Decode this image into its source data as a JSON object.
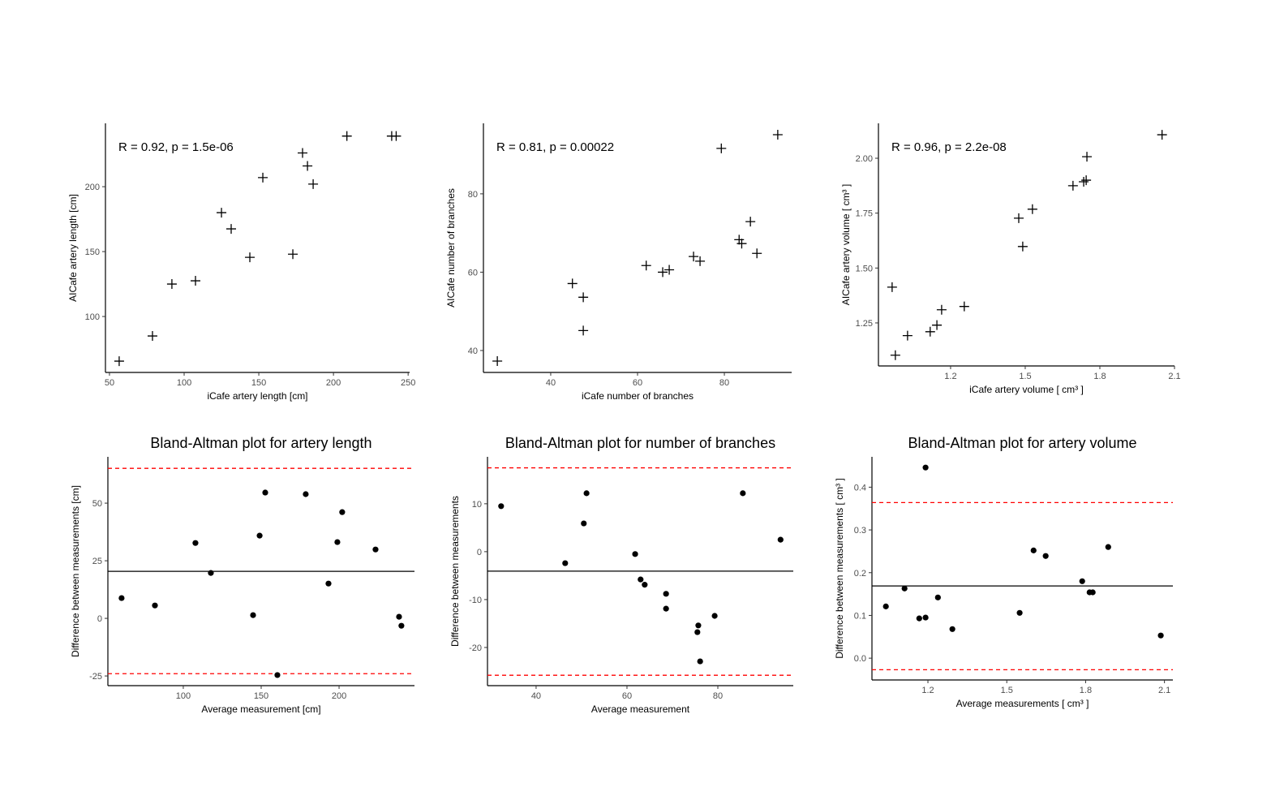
{
  "chart_data": [
    {
      "type": "scatter",
      "marker": "plus",
      "title": "",
      "annotation": "R = 0.92, p = 1.5e-06",
      "xlabel": "iCafe artery length [cm]",
      "ylabel": "AICafe artery length [cm]",
      "xlim": [
        47.3,
        251
      ],
      "ylim": [
        56.9,
        248.8
      ],
      "xticks": [
        50,
        100,
        150,
        200,
        250
      ],
      "yticks": [
        100,
        150,
        200
      ],
      "points": [
        [
          56.5,
          65.6
        ],
        [
          78.8,
          85
        ],
        [
          91.8,
          125
        ],
        [
          107.6,
          127.5
        ],
        [
          125,
          180
        ],
        [
          131.5,
          167.5
        ],
        [
          144,
          145.6
        ],
        [
          152.7,
          207
        ],
        [
          172.8,
          148
        ],
        [
          179.3,
          226
        ],
        [
          182.6,
          216
        ],
        [
          186.4,
          202
        ],
        [
          209,
          239
        ],
        [
          239,
          239
        ],
        [
          242,
          239
        ]
      ]
    },
    {
      "type": "scatter",
      "marker": "plus",
      "title": "",
      "annotation": "R = 0.81, p = 0.00022",
      "xlabel": "iCafe number of branches",
      "ylabel": "AICafe number of branches",
      "xlim": [
        24.5,
        95.5
      ],
      "ylim": [
        34.4,
        98.0
      ],
      "xticks": [
        40,
        60,
        80
      ],
      "yticks": [
        40,
        60,
        80
      ],
      "points": [
        [
          27.7,
          37.3
        ],
        [
          45,
          57.1
        ],
        [
          47.5,
          53.6
        ],
        [
          47.5,
          45.1
        ],
        [
          62,
          61.7
        ],
        [
          65.8,
          60
        ],
        [
          67.3,
          60.6
        ],
        [
          72.9,
          64
        ],
        [
          74.4,
          62.8
        ],
        [
          79.3,
          91.6
        ],
        [
          83.4,
          68.3
        ],
        [
          84,
          67.3
        ],
        [
          86,
          72.9
        ],
        [
          87.5,
          64.8
        ],
        [
          92.3,
          95.1
        ]
      ]
    },
    {
      "type": "scatter",
      "marker": "plus",
      "title": "",
      "annotation": "R = 0.96, p = 2.2e-08",
      "xlabel": "iCafe artery volume [ cm³ ]",
      "ylabel": "AICafe artery volume [ cm³ ]",
      "xlim": [
        0.91,
        2.1
      ],
      "ylim": [
        1.054,
        2.159
      ],
      "xticks": [
        1.2,
        1.5,
        1.8,
        2.1
      ],
      "yticks": [
        1.25,
        1.5,
        1.75,
        2.0
      ],
      "xtick_labels": [
        "1.2",
        "1.5",
        "1.8",
        "2.1"
      ],
      "ytick_labels": [
        "1.25",
        "1.50",
        "1.75",
        "2.00"
      ],
      "points": [
        [
          0.965,
          1.413
        ],
        [
          0.978,
          1.103
        ],
        [
          1.027,
          1.192
        ],
        [
          1.118,
          1.21
        ],
        [
          1.145,
          1.24
        ],
        [
          1.164,
          1.31
        ],
        [
          1.255,
          1.325
        ],
        [
          1.474,
          1.727
        ],
        [
          1.49,
          1.598
        ],
        [
          1.529,
          1.768
        ],
        [
          1.692,
          1.875
        ],
        [
          1.735,
          1.893
        ],
        [
          1.745,
          1.9
        ],
        [
          1.748,
          2.007
        ],
        [
          2.05,
          2.107
        ]
      ]
    },
    {
      "type": "scatter",
      "marker": "dot",
      "title": "Bland-Altman plot for artery length",
      "xlabel": "Average measurement [cm]",
      "ylabel": "Difference between measurements [cm]",
      "xlim": [
        51.6,
        248.4
      ],
      "ylim": [
        -29.2,
        70.1
      ],
      "xticks": [
        100,
        150,
        200
      ],
      "yticks": [
        -25,
        0,
        25,
        50
      ],
      "mean_line": 20.4,
      "limits": [
        65.1,
        -24.0
      ],
      "points": [
        [
          60.4,
          8.8
        ],
        [
          81.8,
          5.6
        ],
        [
          107.8,
          32.7
        ],
        [
          117.7,
          19.7
        ],
        [
          144.8,
          1.4
        ],
        [
          149,
          35.9
        ],
        [
          152.6,
          54.6
        ],
        [
          160.4,
          -24.6
        ],
        [
          178.6,
          53.9
        ],
        [
          193.2,
          15.1
        ],
        [
          198.9,
          33.1
        ],
        [
          202,
          46.1
        ],
        [
          223.4,
          29.9
        ],
        [
          238.5,
          0.7
        ],
        [
          240,
          -3.2
        ]
      ]
    },
    {
      "type": "scatter",
      "marker": "dot",
      "title": "Bland-Altman plot for number of branches",
      "xlabel": "Average measurement",
      "ylabel": "Difference between measurements",
      "xlim": [
        29.3,
        96.6
      ],
      "ylim": [
        -27.97,
        19.8
      ],
      "xticks": [
        40,
        60,
        80
      ],
      "yticks": [
        -20,
        -10,
        0,
        10
      ],
      "mean_line": -4.07,
      "limits": [
        17.5,
        -25.8
      ],
      "points": [
        [
          32.3,
          9.5
        ],
        [
          46.4,
          -2.4
        ],
        [
          50.5,
          5.9
        ],
        [
          51.1,
          12.2
        ],
        [
          61.8,
          -0.5
        ],
        [
          63,
          -5.8
        ],
        [
          63.9,
          -6.9
        ],
        [
          68.6,
          -8.8
        ],
        [
          68.6,
          -11.9
        ],
        [
          75.7,
          -15.4
        ],
        [
          75.5,
          -16.8
        ],
        [
          76.1,
          -22.9
        ],
        [
          79.3,
          -13.4
        ],
        [
          85.5,
          12.2
        ],
        [
          93.8,
          2.5
        ]
      ]
    },
    {
      "type": "scatter",
      "marker": "dot",
      "title": "Bland-Altman plot for artery volume",
      "xlabel": "Average measurements [ cm³ ]",
      "ylabel": "Difference between measurements [ cm³ ]",
      "xlim": [
        0.987,
        2.132
      ],
      "ylim": [
        -0.051,
        0.471
      ],
      "xticks": [
        1.2,
        1.5,
        1.8,
        2.1
      ],
      "yticks": [
        0.0,
        0.1,
        0.2,
        0.3,
        0.4
      ],
      "xtick_labels": [
        "1.2",
        "1.5",
        "1.8",
        "2.1"
      ],
      "ytick_labels": [
        "0.0",
        "0.1",
        "0.2",
        "0.3",
        "0.4"
      ],
      "mean_line": 0.169,
      "limits": [
        0.364,
        -0.027
      ],
      "points": [
        [
          1.04,
          0.121
        ],
        [
          1.111,
          0.163
        ],
        [
          1.167,
          0.093
        ],
        [
          1.191,
          0.095
        ],
        [
          1.191,
          0.446
        ],
        [
          1.238,
          0.142
        ],
        [
          1.293,
          0.068
        ],
        [
          1.549,
          0.106
        ],
        [
          1.602,
          0.252
        ],
        [
          1.648,
          0.239
        ],
        [
          1.787,
          0.18
        ],
        [
          1.815,
          0.154
        ],
        [
          1.827,
          0.154
        ],
        [
          1.886,
          0.26
        ],
        [
          2.086,
          0.053
        ]
      ]
    }
  ],
  "colors": {
    "points": "#000000",
    "limits": "#FF0000",
    "mean": "#000000",
    "ticks": "#4d4d4d"
  }
}
